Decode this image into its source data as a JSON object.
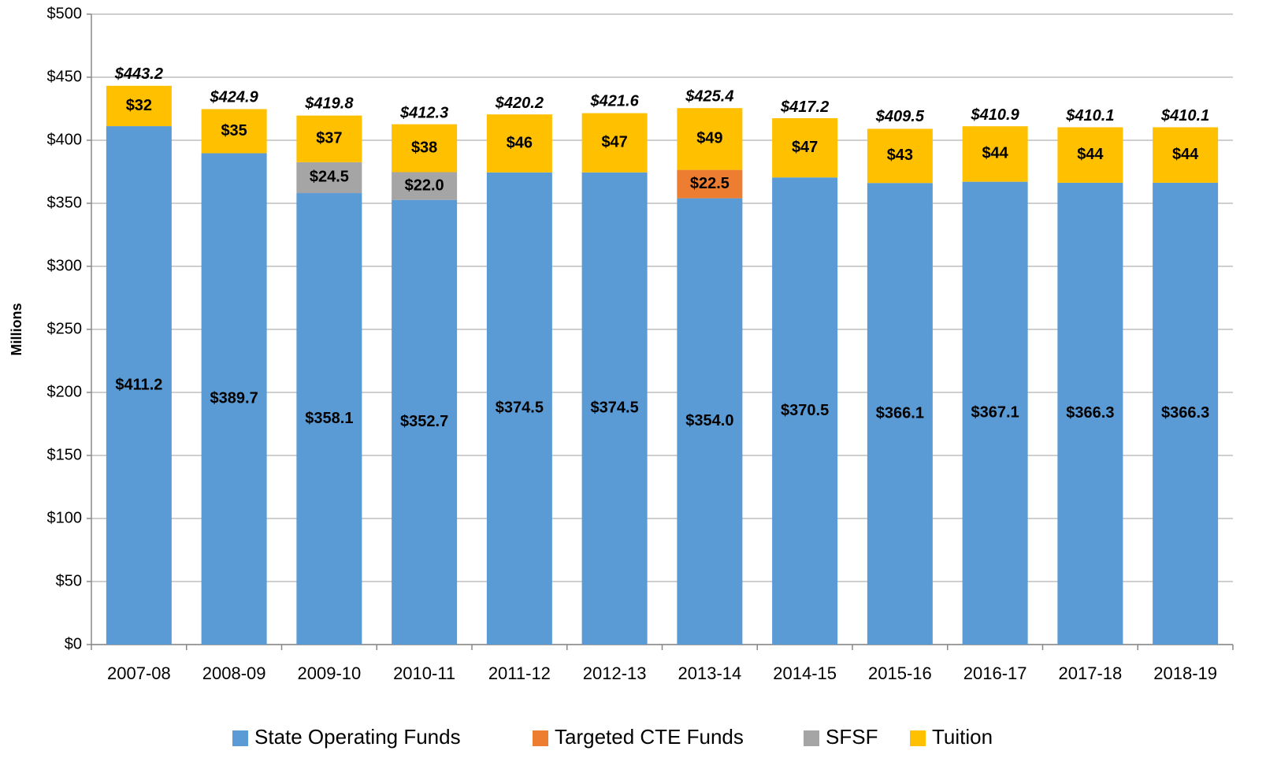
{
  "chart_data": {
    "type": "stacked_bar",
    "y_axis_label": "Millions",
    "categories": [
      "2007-08",
      "2008-09",
      "2009-10",
      "2010-11",
      "2011-12",
      "2012-13",
      "2013-14",
      "2014-15",
      "2015-16",
      "2016-17",
      "2017-18",
      "2018-19"
    ],
    "series": [
      {
        "name": "State Operating Funds",
        "color": "#5b9bd5",
        "values": [
          411.2,
          389.7,
          358.1,
          352.7,
          374.5,
          374.5,
          354.0,
          370.5,
          366.1,
          367.1,
          366.3,
          366.3
        ],
        "value_labels": [
          "$411.2",
          "$389.7",
          "$358.1",
          "$352.7",
          "$374.5",
          "$374.5",
          "$354.0",
          "$370.5",
          "$366.1",
          "$367.1",
          "$366.3",
          "$366.3"
        ]
      },
      {
        "name": "Targeted CTE Funds",
        "color": "#ed7d31",
        "values": [
          null,
          null,
          null,
          null,
          null,
          null,
          22.5,
          null,
          null,
          null,
          null,
          null
        ],
        "value_labels": [
          null,
          null,
          null,
          null,
          null,
          null,
          "$22.5",
          null,
          null,
          null,
          null,
          null
        ]
      },
      {
        "name": "SFSF",
        "color": "#a5a5a5",
        "values": [
          null,
          null,
          24.5,
          22.0,
          null,
          null,
          null,
          null,
          null,
          null,
          null,
          null
        ],
        "value_labels": [
          null,
          null,
          "$24.5",
          "$22.0",
          null,
          null,
          null,
          null,
          null,
          null,
          null,
          null
        ]
      },
      {
        "name": "Tuition",
        "color": "#ffc000",
        "values": [
          32,
          35,
          37,
          38,
          46,
          47,
          49,
          47,
          43,
          44,
          44,
          44
        ],
        "value_labels": [
          "$32",
          "$35",
          "$37",
          "$38",
          "$46",
          "$47",
          "$49",
          "$47",
          "$43",
          "$44",
          "$44",
          "$44"
        ]
      }
    ],
    "totals": {
      "values": [
        443.2,
        424.9,
        419.8,
        412.3,
        420.2,
        421.6,
        425.4,
        417.2,
        409.5,
        410.9,
        410.1,
        410.1
      ],
      "value_labels": [
        "$443.2",
        "$424.9",
        "$419.8",
        "$412.3",
        "$420.2",
        "$421.6",
        "$425.4",
        "$417.2",
        "$409.5",
        "$410.9",
        "$410.1",
        "$410.1"
      ]
    },
    "ylim": [
      0,
      500
    ],
    "yticks": [
      {
        "value": 0,
        "label": "$0"
      },
      {
        "value": 50,
        "label": "$50"
      },
      {
        "value": 100,
        "label": "$100"
      },
      {
        "value": 150,
        "label": "$150"
      },
      {
        "value": 200,
        "label": "$200"
      },
      {
        "value": 250,
        "label": "$250"
      },
      {
        "value": 300,
        "label": "$300"
      },
      {
        "value": 350,
        "label": "$350"
      },
      {
        "value": 400,
        "label": "$400"
      },
      {
        "value": 450,
        "label": "$450"
      },
      {
        "value": 500,
        "label": "$500"
      }
    ],
    "grid": true,
    "legend": "bottom"
  }
}
